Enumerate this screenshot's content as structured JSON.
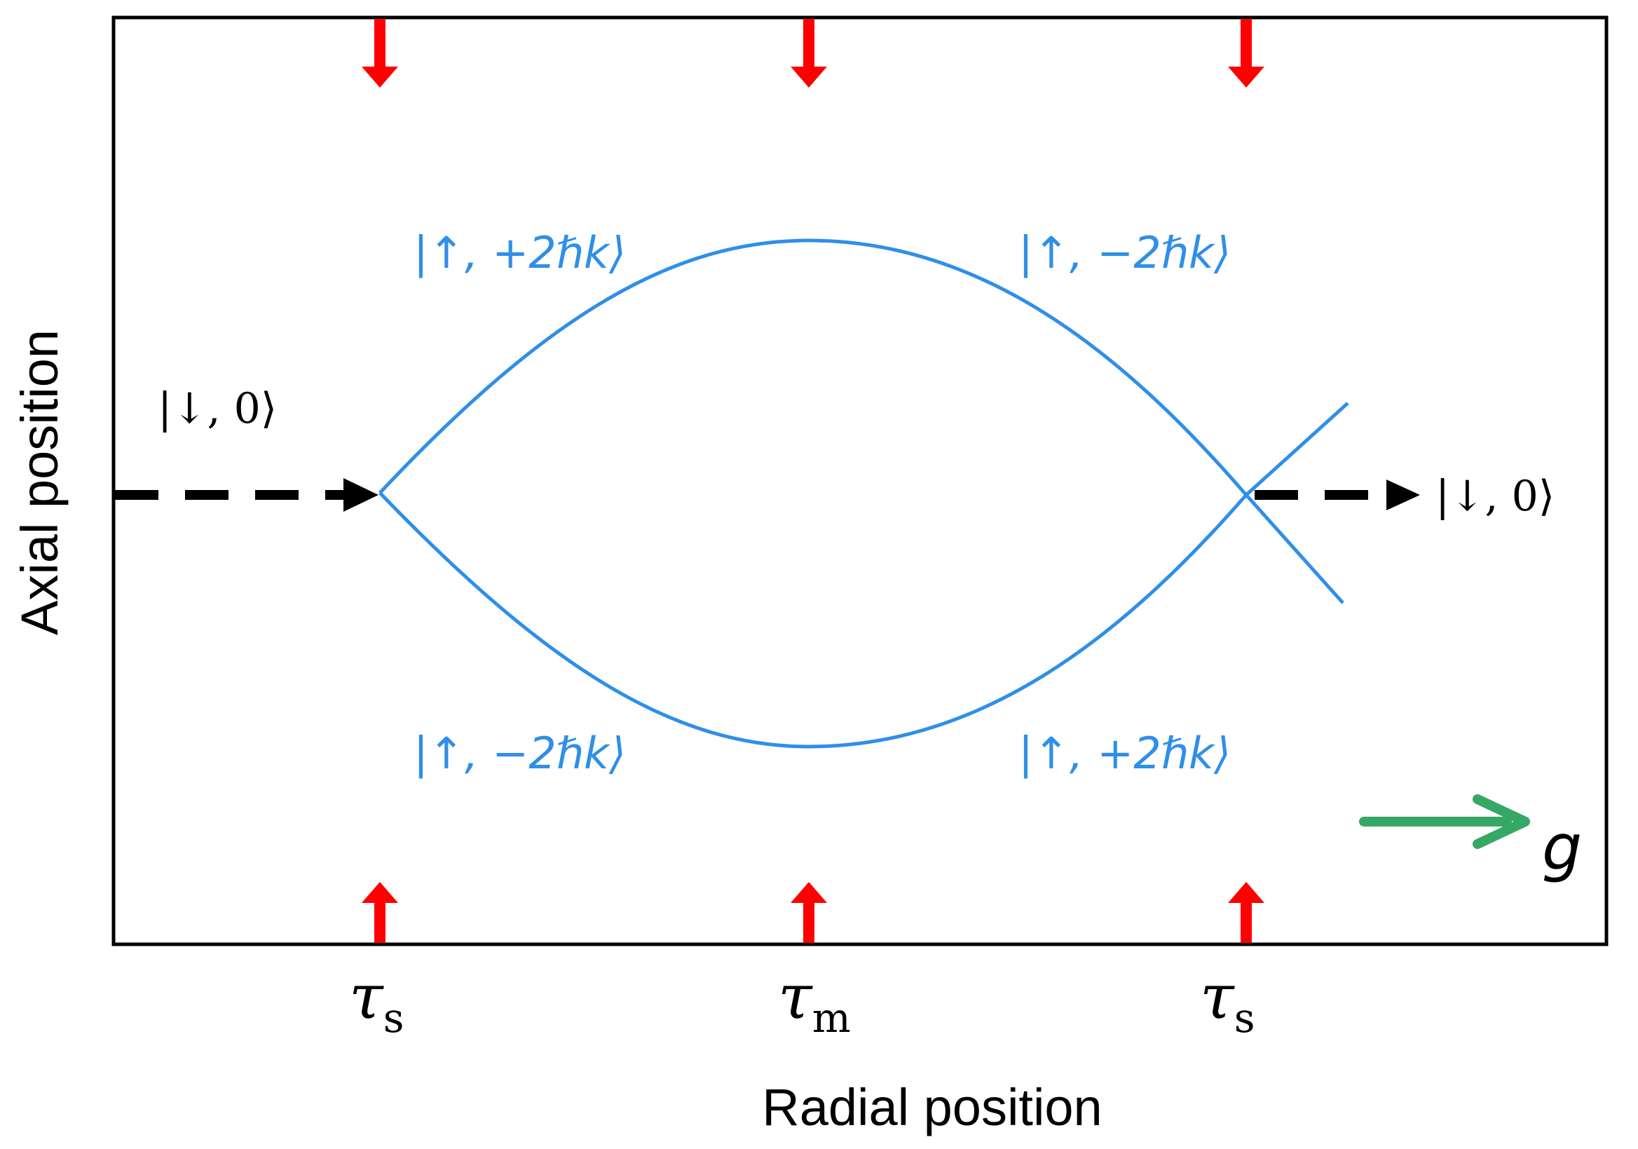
{
  "axes": {
    "x_label": "Radial position",
    "y_label": "Axial position"
  },
  "ticks": [
    {
      "symbol": "τ",
      "sub": "s"
    },
    {
      "symbol": "τ",
      "sub": "m"
    },
    {
      "symbol": "τ",
      "sub": "s"
    }
  ],
  "states": {
    "input": "|↓, 0⟩",
    "output": "|↓, 0⟩",
    "upper_left": "|↑, +2ℏk⟩",
    "upper_right": "|↑, −2ℏk⟩",
    "lower_left": "|↑, −2ℏk⟩",
    "lower_right": "|↑, +2ℏk⟩"
  },
  "gravity": {
    "label": "g",
    "color": "#35a866"
  },
  "colors": {
    "paths": "#2f8fe8",
    "pulses": "#ff0000",
    "dashed": "#000000"
  }
}
